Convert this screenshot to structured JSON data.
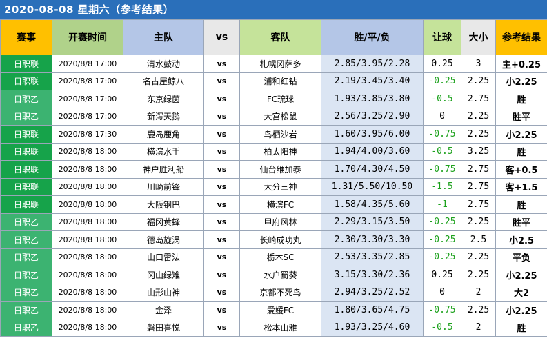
{
  "title": "2020-08-08 星期六（参考结果）",
  "headers": {
    "league": "赛事",
    "time": "开赛时间",
    "home": "主队",
    "vs": "vs",
    "away": "客队",
    "odds": "胜/平/负",
    "handicap": "让球",
    "size": "大小",
    "result": "参考结果"
  },
  "colors": {
    "banner": "#2a6fba",
    "league_j1": "#16a34a",
    "league_j2": "#3cb371",
    "negative_handicap": "#1aa01a"
  },
  "rows": [
    {
      "league": "日职联",
      "time": "2020/8/8 17:00",
      "home": "清水鼓动",
      "vs": "vs",
      "away": "札幌冈萨多",
      "odds": "2.85/3.95/2.28",
      "handicap": "0.25",
      "size": "3",
      "result": "主+0.25"
    },
    {
      "league": "日职联",
      "time": "2020/8/8 17:00",
      "home": "名古屋鲸八",
      "vs": "vs",
      "away": "浦和红钻",
      "odds": "2.19/3.45/3.40",
      "handicap": "-0.25",
      "size": "2.25",
      "result": "小2.25"
    },
    {
      "league": "日职乙",
      "time": "2020/8/8 17:00",
      "home": "东京绿茵",
      "vs": "vs",
      "away": "FC琉球",
      "odds": "1.93/3.85/3.80",
      "handicap": "-0.5",
      "size": "2.75",
      "result": "胜"
    },
    {
      "league": "日职乙",
      "time": "2020/8/8 17:00",
      "home": "新泻天鹅",
      "vs": "vs",
      "away": "大宫松鼠",
      "odds": "2.56/3.25/2.90",
      "handicap": "0",
      "size": "2.25",
      "result": "胜平"
    },
    {
      "league": "日职联",
      "time": "2020/8/8 17:30",
      "home": "鹿岛鹿角",
      "vs": "vs",
      "away": "鸟栖沙岩",
      "odds": "1.60/3.95/6.00",
      "handicap": "-0.75",
      "size": "2.25",
      "result": "小2.25"
    },
    {
      "league": "日职联",
      "time": "2020/8/8 18:00",
      "home": "横滨水手",
      "vs": "vs",
      "away": "柏太阳神",
      "odds": "1.94/4.00/3.60",
      "handicap": "-0.5",
      "size": "3.25",
      "result": "胜"
    },
    {
      "league": "日职联",
      "time": "2020/8/8 18:00",
      "home": "神户胜利船",
      "vs": "vs",
      "away": "仙台维加泰",
      "odds": "1.70/4.30/4.50",
      "handicap": "-0.75",
      "size": "2.75",
      "result": "客+0.5"
    },
    {
      "league": "日职联",
      "time": "2020/8/8 18:00",
      "home": "川崎前锋",
      "vs": "vs",
      "away": "大分三神",
      "odds": "1.31/5.50/10.50",
      "handicap": "-1.5",
      "size": "2.75",
      "result": "客+1.5"
    },
    {
      "league": "日职联",
      "time": "2020/8/8 18:00",
      "home": "大阪钢巴",
      "vs": "vs",
      "away": "横滨FC",
      "odds": "1.58/4.35/5.60",
      "handicap": "-1",
      "size": "2.75",
      "result": "胜"
    },
    {
      "league": "日职乙",
      "time": "2020/8/8 18:00",
      "home": "福冈黄蜂",
      "vs": "vs",
      "away": "甲府风林",
      "odds": "2.29/3.15/3.50",
      "handicap": "-0.25",
      "size": "2.25",
      "result": "胜平"
    },
    {
      "league": "日职乙",
      "time": "2020/8/8 18:00",
      "home": "德岛旋涡",
      "vs": "vs",
      "away": "长崎成功丸",
      "odds": "2.30/3.30/3.30",
      "handicap": "-0.25",
      "size": "2.5",
      "result": "小2.5"
    },
    {
      "league": "日职乙",
      "time": "2020/8/8 18:00",
      "home": "山口雷法",
      "vs": "vs",
      "away": "栃木SC",
      "odds": "2.53/3.35/2.85",
      "handicap": "-0.25",
      "size": "2.25",
      "result": "平负"
    },
    {
      "league": "日职乙",
      "time": "2020/8/8 18:00",
      "home": "冈山绿雉",
      "vs": "vs",
      "away": "水户蜀葵",
      "odds": "3.15/3.30/2.36",
      "handicap": "0.25",
      "size": "2.25",
      "result": "小2.25"
    },
    {
      "league": "日职乙",
      "time": "2020/8/8 18:00",
      "home": "山形山神",
      "vs": "vs",
      "away": "京都不死鸟",
      "odds": "2.94/3.25/2.52",
      "handicap": "0",
      "size": "2",
      "result": "大2"
    },
    {
      "league": "日职乙",
      "time": "2020/8/8 18:00",
      "home": "金泽",
      "vs": "vs",
      "away": "爱媛FC",
      "odds": "1.80/3.65/4.75",
      "handicap": "-0.75",
      "size": "2.25",
      "result": "小2.25"
    },
    {
      "league": "日职乙",
      "time": "2020/8/8 18:00",
      "home": "磐田喜悦",
      "vs": "vs",
      "away": "松本山雅",
      "odds": "1.93/3.25/4.60",
      "handicap": "-0.5",
      "size": "2",
      "result": "胜"
    }
  ]
}
